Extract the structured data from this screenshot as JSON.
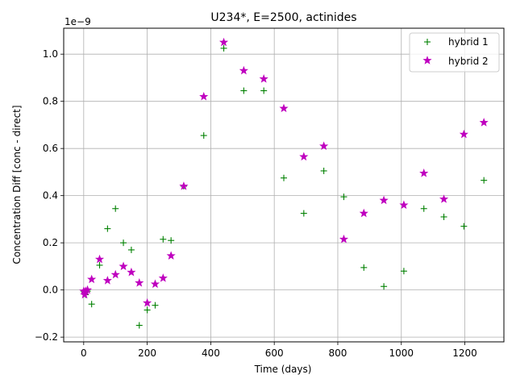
{
  "chart_data": {
    "type": "scatter",
    "title": "U234*, E=2500, actinides",
    "xlabel": "Time (days)",
    "ylabel": "Concentration Diff [conc - direct]",
    "offset_label": "1e−9",
    "xlim": [
      -63,
      1323
    ],
    "ylim": [
      -0.22,
      1.11
    ],
    "xticks": [
      0,
      200,
      400,
      600,
      800,
      1000,
      1200
    ],
    "xtick_labels": [
      "0",
      "200",
      "400",
      "600",
      "800",
      "1000",
      "1200"
    ],
    "yticks": [
      -0.2,
      0.0,
      0.2,
      0.4,
      0.6,
      0.8,
      1.0
    ],
    "ytick_labels": [
      "−0.2",
      "0.0",
      "0.2",
      "0.4",
      "0.6",
      "0.8",
      "1.0"
    ],
    "grid": true,
    "legend_position": "top-right",
    "series": [
      {
        "name": "hybrid 1",
        "marker": "plus",
        "color": "#008000",
        "points": [
          [
            0,
            -0.005
          ],
          [
            3,
            -0.01
          ],
          [
            6,
            -0.02
          ],
          [
            12,
            -0.005
          ],
          [
            25,
            -0.06
          ],
          [
            50,
            0.105
          ],
          [
            75,
            0.26
          ],
          [
            100,
            0.345
          ],
          [
            125,
            0.2
          ],
          [
            150,
            0.17
          ],
          [
            175,
            -0.15
          ],
          [
            200,
            -0.085
          ],
          [
            225,
            -0.065
          ],
          [
            250,
            0.215
          ],
          [
            275,
            0.21
          ],
          [
            315,
            0.44
          ],
          [
            378,
            0.655
          ],
          [
            441,
            1.025
          ],
          [
            504,
            0.845
          ],
          [
            567,
            0.845
          ],
          [
            630,
            0.475
          ],
          [
            693,
            0.325
          ],
          [
            756,
            0.505
          ],
          [
            819,
            0.395
          ],
          [
            882,
            0.095
          ],
          [
            945,
            0.015
          ],
          [
            1008,
            0.08
          ],
          [
            1071,
            0.345
          ],
          [
            1134,
            0.31
          ],
          [
            1197,
            0.27
          ],
          [
            1260,
            0.465
          ]
        ]
      },
      {
        "name": "hybrid 2",
        "marker": "star",
        "color": "#bf00bf",
        "points": [
          [
            0,
            -0.005
          ],
          [
            3,
            -0.02
          ],
          [
            6,
            -0.005
          ],
          [
            12,
            0.0
          ],
          [
            25,
            0.045
          ],
          [
            50,
            0.13
          ],
          [
            75,
            0.04
          ],
          [
            100,
            0.065
          ],
          [
            125,
            0.1
          ],
          [
            150,
            0.075
          ],
          [
            175,
            0.03
          ],
          [
            200,
            -0.055
          ],
          [
            225,
            0.025
          ],
          [
            250,
            0.05
          ],
          [
            275,
            0.145
          ],
          [
            315,
            0.44
          ],
          [
            378,
            0.82
          ],
          [
            441,
            1.05
          ],
          [
            504,
            0.93
          ],
          [
            567,
            0.895
          ],
          [
            630,
            0.77
          ],
          [
            693,
            0.565
          ],
          [
            756,
            0.61
          ],
          [
            819,
            0.215
          ],
          [
            882,
            0.325
          ],
          [
            945,
            0.38
          ],
          [
            1008,
            0.36
          ],
          [
            1071,
            0.495
          ],
          [
            1134,
            0.385
          ],
          [
            1197,
            0.66
          ],
          [
            1260,
            0.71
          ]
        ]
      }
    ]
  }
}
